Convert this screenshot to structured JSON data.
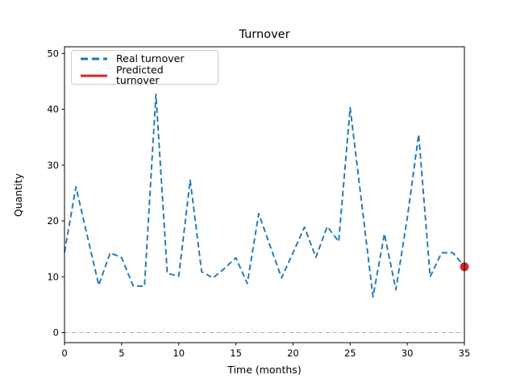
{
  "chart_data": {
    "type": "line",
    "title": "Turnover",
    "xlabel": "Time (months)",
    "ylabel": "Quantity",
    "xlim": [
      0,
      35
    ],
    "ylim": [
      -1.8,
      51.2
    ],
    "xticks": [
      0,
      5,
      10,
      15,
      20,
      25,
      30,
      35
    ],
    "yticks": [
      0,
      10,
      20,
      30,
      40,
      50
    ],
    "grid": false,
    "legend_position": "upper left",
    "zero_line": {
      "y": 0,
      "color": "#b0b0b0",
      "linestyle": "dashed"
    },
    "x": [
      0,
      1,
      2,
      3,
      4,
      5,
      6,
      7,
      8,
      9,
      10,
      11,
      12,
      13,
      14,
      15,
      16,
      17,
      18,
      19,
      20,
      21,
      22,
      23,
      24,
      25,
      26,
      27,
      28,
      29,
      30,
      31,
      32,
      33,
      34,
      35
    ],
    "series": [
      {
        "name": "Real turnover",
        "color": "#1f77b4",
        "linestyle": "dashed",
        "values": [
          14.4,
          26.1,
          17.3,
          8.5,
          14.3,
          13.4,
          8.4,
          8.3,
          42.7,
          10.6,
          10.1,
          27.3,
          10.9,
          9.8,
          11.5,
          13.4,
          8.8,
          21.3,
          15.5,
          9.8,
          14.3,
          18.9,
          13.5,
          19.0,
          16.3,
          40.3,
          23.3,
          6.4,
          17.7,
          7.7,
          20.5,
          35.5,
          10.0,
          14.3,
          14.3,
          11.8
        ]
      },
      {
        "name": "Predicted turnover",
        "color": "#d62728",
        "linestyle": "solid",
        "marker": "circle",
        "points": [
          {
            "x": 35,
            "y": 11.8
          }
        ]
      }
    ]
  }
}
